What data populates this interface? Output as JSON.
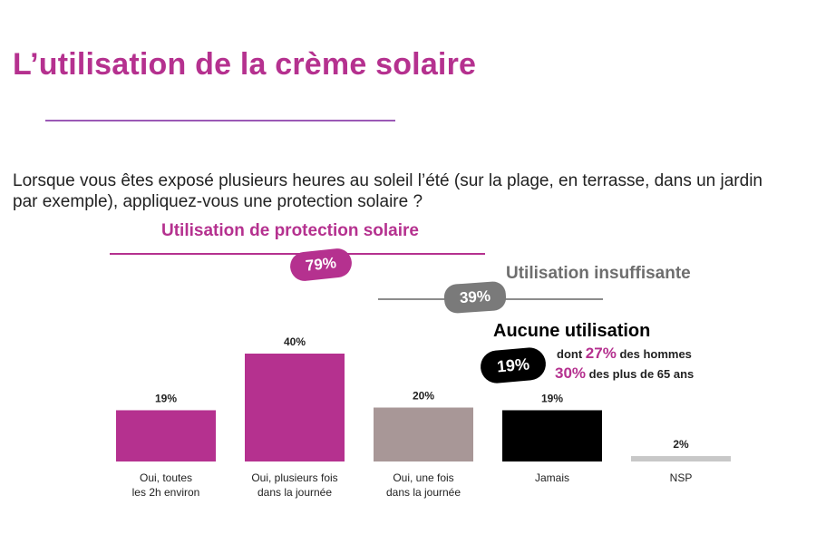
{
  "title": "L’utilisation de la crème solaire",
  "question_lines": [
    "Lorsque vous êtes exposé plusieurs heures au soleil l’été (sur la plage, en terrasse, dans un jardin",
    "par exemple), appliquez-vous une protection solaire ?"
  ],
  "groups": {
    "protection": {
      "label": "Utilisation de protection solaire",
      "value": "79%",
      "color": "#b5318f"
    },
    "insuffisante": {
      "label": "Utilisation insuffisante",
      "value": "39%",
      "color": "#6e6e6e"
    },
    "aucune": {
      "label": "Aucune utilisation",
      "value": "19%",
      "color": "#000000",
      "note_line1_prefix": "dont",
      "note_line1_value": "27%",
      "note_line1_suffix": "des hommes",
      "note_line2_value": "30%",
      "note_line2_suffix": "des plus de 65 ans"
    }
  },
  "chart_data": {
    "type": "bar",
    "categories": [
      [
        "Oui, toutes",
        "les 2h environ"
      ],
      [
        "Oui, plusieurs fois",
        "dans la journée"
      ],
      [
        "Oui, une fois",
        "dans la journée"
      ],
      [
        "Jamais"
      ],
      [
        "NSP"
      ]
    ],
    "values": [
      19,
      40,
      20,
      19,
      2
    ],
    "value_labels": [
      "19%",
      "40%",
      "20%",
      "19%",
      "2%"
    ],
    "colors": [
      "#b5318f",
      "#b5318f",
      "#a89797",
      "#000000",
      "#c8c8c8"
    ],
    "unit": "%",
    "title": "",
    "xlabel": "",
    "ylabel": "",
    "ylim": [
      0,
      40
    ],
    "grid": false
  }
}
